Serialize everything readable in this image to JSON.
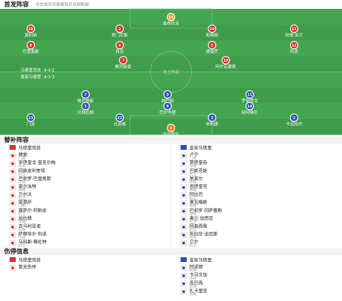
{
  "header": {
    "title": "首发阵容",
    "subtitle": "点击球员可查看球员详细数据"
  },
  "pitch": {
    "home": {
      "name": "马德里竞技",
      "formation": "4-4-2"
    },
    "away": {
      "name": "皇家马德里",
      "formation": "4-3-3"
    },
    "center": "场上阵容"
  },
  "home_lines": [
    [
      {
        "name": "奥布拉克",
        "number": "13"
      }
    ],
    [
      {
        "name": "莫利纳",
        "number": "16"
      },
      {
        "name": "希门尼斯",
        "number": "2"
      },
      {
        "name": "勒格朗",
        "number": "24"
      },
      {
        "name": "哈维·加兰",
        "number": "21"
      }
    ],
    [
      {
        "name": "巴里奥斯",
        "number": "8"
      },
      {
        "name": "科克",
        "number": "6"
      },
      {
        "name": "德保罗",
        "number": "5"
      },
      {
        "name": "利诺",
        "number": "12"
      }
    ],
    [
      {
        "name": "格列兹曼",
        "number": "7"
      },
      {
        "name": "阿尔瓦雷斯",
        "number": "19"
      }
    ]
  ],
  "away_lines": [
    [
      {
        "name": "维尼修斯",
        "number": "7"
      },
      {
        "name": "姆巴佩",
        "number": "9"
      },
      {
        "name": "罗德里戈",
        "number": "11"
      }
    ],
    [
      {
        "name": "贝林厄姆",
        "number": "5"
      },
      {
        "name": "巴尔韦德",
        "number": "8"
      },
      {
        "name": "琼阿梅尼",
        "number": "14"
      }
    ],
    [
      {
        "name": "门迪",
        "number": "23"
      },
      {
        "name": "吕迪格",
        "number": "22"
      },
      {
        "name": "米利唐",
        "number": "3"
      },
      {
        "name": "卡瓦哈尔",
        "number": "2"
      }
    ],
    [
      {
        "name": "库尔图瓦",
        "number": "1"
      }
    ]
  ],
  "subs": {
    "title": "替补阵容",
    "home": [
      {
        "name": "马德里竞技",
        "pos": ""
      },
      {
        "name": "穆索",
        "pos": "门将"
      },
      {
        "name": "罗德里戈·里克尔梅",
        "pos": "中场"
      },
      {
        "name": "阿斯皮利奎塔",
        "pos": "后卫"
      },
      {
        "name": "巴勃罗·巴里奥斯",
        "pos": "中场"
      },
      {
        "name": "索尔洛特",
        "pos": "前锋"
      },
      {
        "name": "贝尔沃",
        "pos": "后卫"
      },
      {
        "name": "索莫萨",
        "pos": "门将"
      },
      {
        "name": "赛萨尔·阿斯皮",
        "pos": "后卫"
      },
      {
        "name": "加拉赫",
        "pos": "中场"
      },
      {
        "name": "吉乌利亚诺",
        "pos": "中场"
      },
      {
        "name": "萨穆埃尔·利诺",
        "pos": "中场"
      },
      {
        "name": "马科斯·略伦特",
        "pos": "后卫"
      }
    ],
    "away": [
      {
        "name": "皇家马德里",
        "pos": ""
      },
      {
        "name": "卢宁",
        "pos": "门将"
      },
      {
        "name": "莫德里奇",
        "pos": "中场"
      },
      {
        "name": "巴斯克斯",
        "pos": "后卫"
      },
      {
        "name": "居莱尔",
        "pos": "中场"
      },
      {
        "name": "恩德里克",
        "pos": "前锋"
      },
      {
        "name": "阿拉巴",
        "pos": "后卫"
      },
      {
        "name": "塞瓦略斯",
        "pos": "中场"
      },
      {
        "name": "巴勃罗·冈萨雷斯",
        "pos": "中场"
      },
      {
        "name": "弗兰·加西亚",
        "pos": "后卫"
      },
      {
        "name": "阿森西奥",
        "pos": "后卫"
      },
      {
        "name": "布拉欣·迪亚斯",
        "pos": "中场"
      },
      {
        "name": "贝尔",
        "pos": "后卫"
      }
    ]
  },
  "injuries": {
    "title": "伤停信息",
    "home": [
      {
        "name": "马德里竞技",
        "pos": ""
      },
      {
        "name": "暂无伤停",
        "pos": ""
      }
    ],
    "away": [
      {
        "name": "皇家马德里",
        "pos": ""
      },
      {
        "name": "阿诺德",
        "pos": "伤停"
      },
      {
        "name": "卡马文加",
        "pos": "伤停"
      },
      {
        "name": "库巴西",
        "pos": "伤停"
      },
      {
        "name": "扎卡里亚",
        "pos": "伤停"
      }
    ]
  }
}
